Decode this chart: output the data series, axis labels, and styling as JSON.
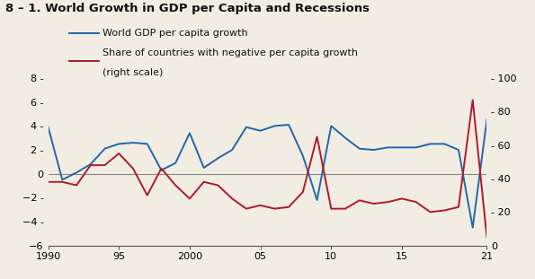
{
  "title": "8 – 1. World Growth in GDP per Capita and Recessions",
  "blue_label": "World GDP per capita growth",
  "red_label1": "Share of countries with negative per capita growth",
  "red_label2": "(right scale)",
  "years": [
    1990,
    1991,
    1992,
    1993,
    1994,
    1995,
    1996,
    1997,
    1998,
    1999,
    2000,
    2001,
    2002,
    2003,
    2004,
    2005,
    2006,
    2007,
    2008,
    2009,
    2010,
    2011,
    2012,
    2013,
    2014,
    2015,
    2016,
    2017,
    2018,
    2019,
    2020,
    2021
  ],
  "blue_values": [
    3.9,
    -0.5,
    0.1,
    0.8,
    2.1,
    2.5,
    2.6,
    2.5,
    0.3,
    0.9,
    3.4,
    0.5,
    1.3,
    2.0,
    3.9,
    3.6,
    4.0,
    4.1,
    1.5,
    -2.2,
    4.0,
    3.0,
    2.1,
    2.0,
    2.2,
    2.2,
    2.2,
    2.5,
    2.5,
    2.0,
    -4.5,
    4.5
  ],
  "red_values": [
    38,
    38,
    36,
    48,
    48,
    55,
    46,
    30,
    46,
    36,
    28,
    38,
    36,
    28,
    22,
    24,
    22,
    23,
    32,
    65,
    22,
    22,
    27,
    25,
    26,
    28,
    26,
    20,
    21,
    23,
    87,
    5
  ],
  "blue_color": "#2166ac",
  "red_color": "#b2182b",
  "zero_line_color": "#888888",
  "left_ylim": [
    -6,
    8
  ],
  "right_ylim": [
    0,
    100
  ],
  "left_yticks": [
    -6,
    -4,
    -2,
    0,
    2,
    4,
    6,
    8
  ],
  "right_yticks": [
    0,
    20,
    40,
    60,
    80,
    100
  ],
  "xticks": [
    1990,
    1995,
    2000,
    2005,
    2010,
    2015,
    2021
  ],
  "xtick_labels": [
    "1990",
    "95",
    "2000",
    "05",
    "10",
    "15",
    "21"
  ],
  "background_color": "#f2ede2",
  "title_fontsize": 9.5,
  "legend_fontsize": 8.0,
  "tick_fontsize": 8.0,
  "linewidth": 1.4
}
